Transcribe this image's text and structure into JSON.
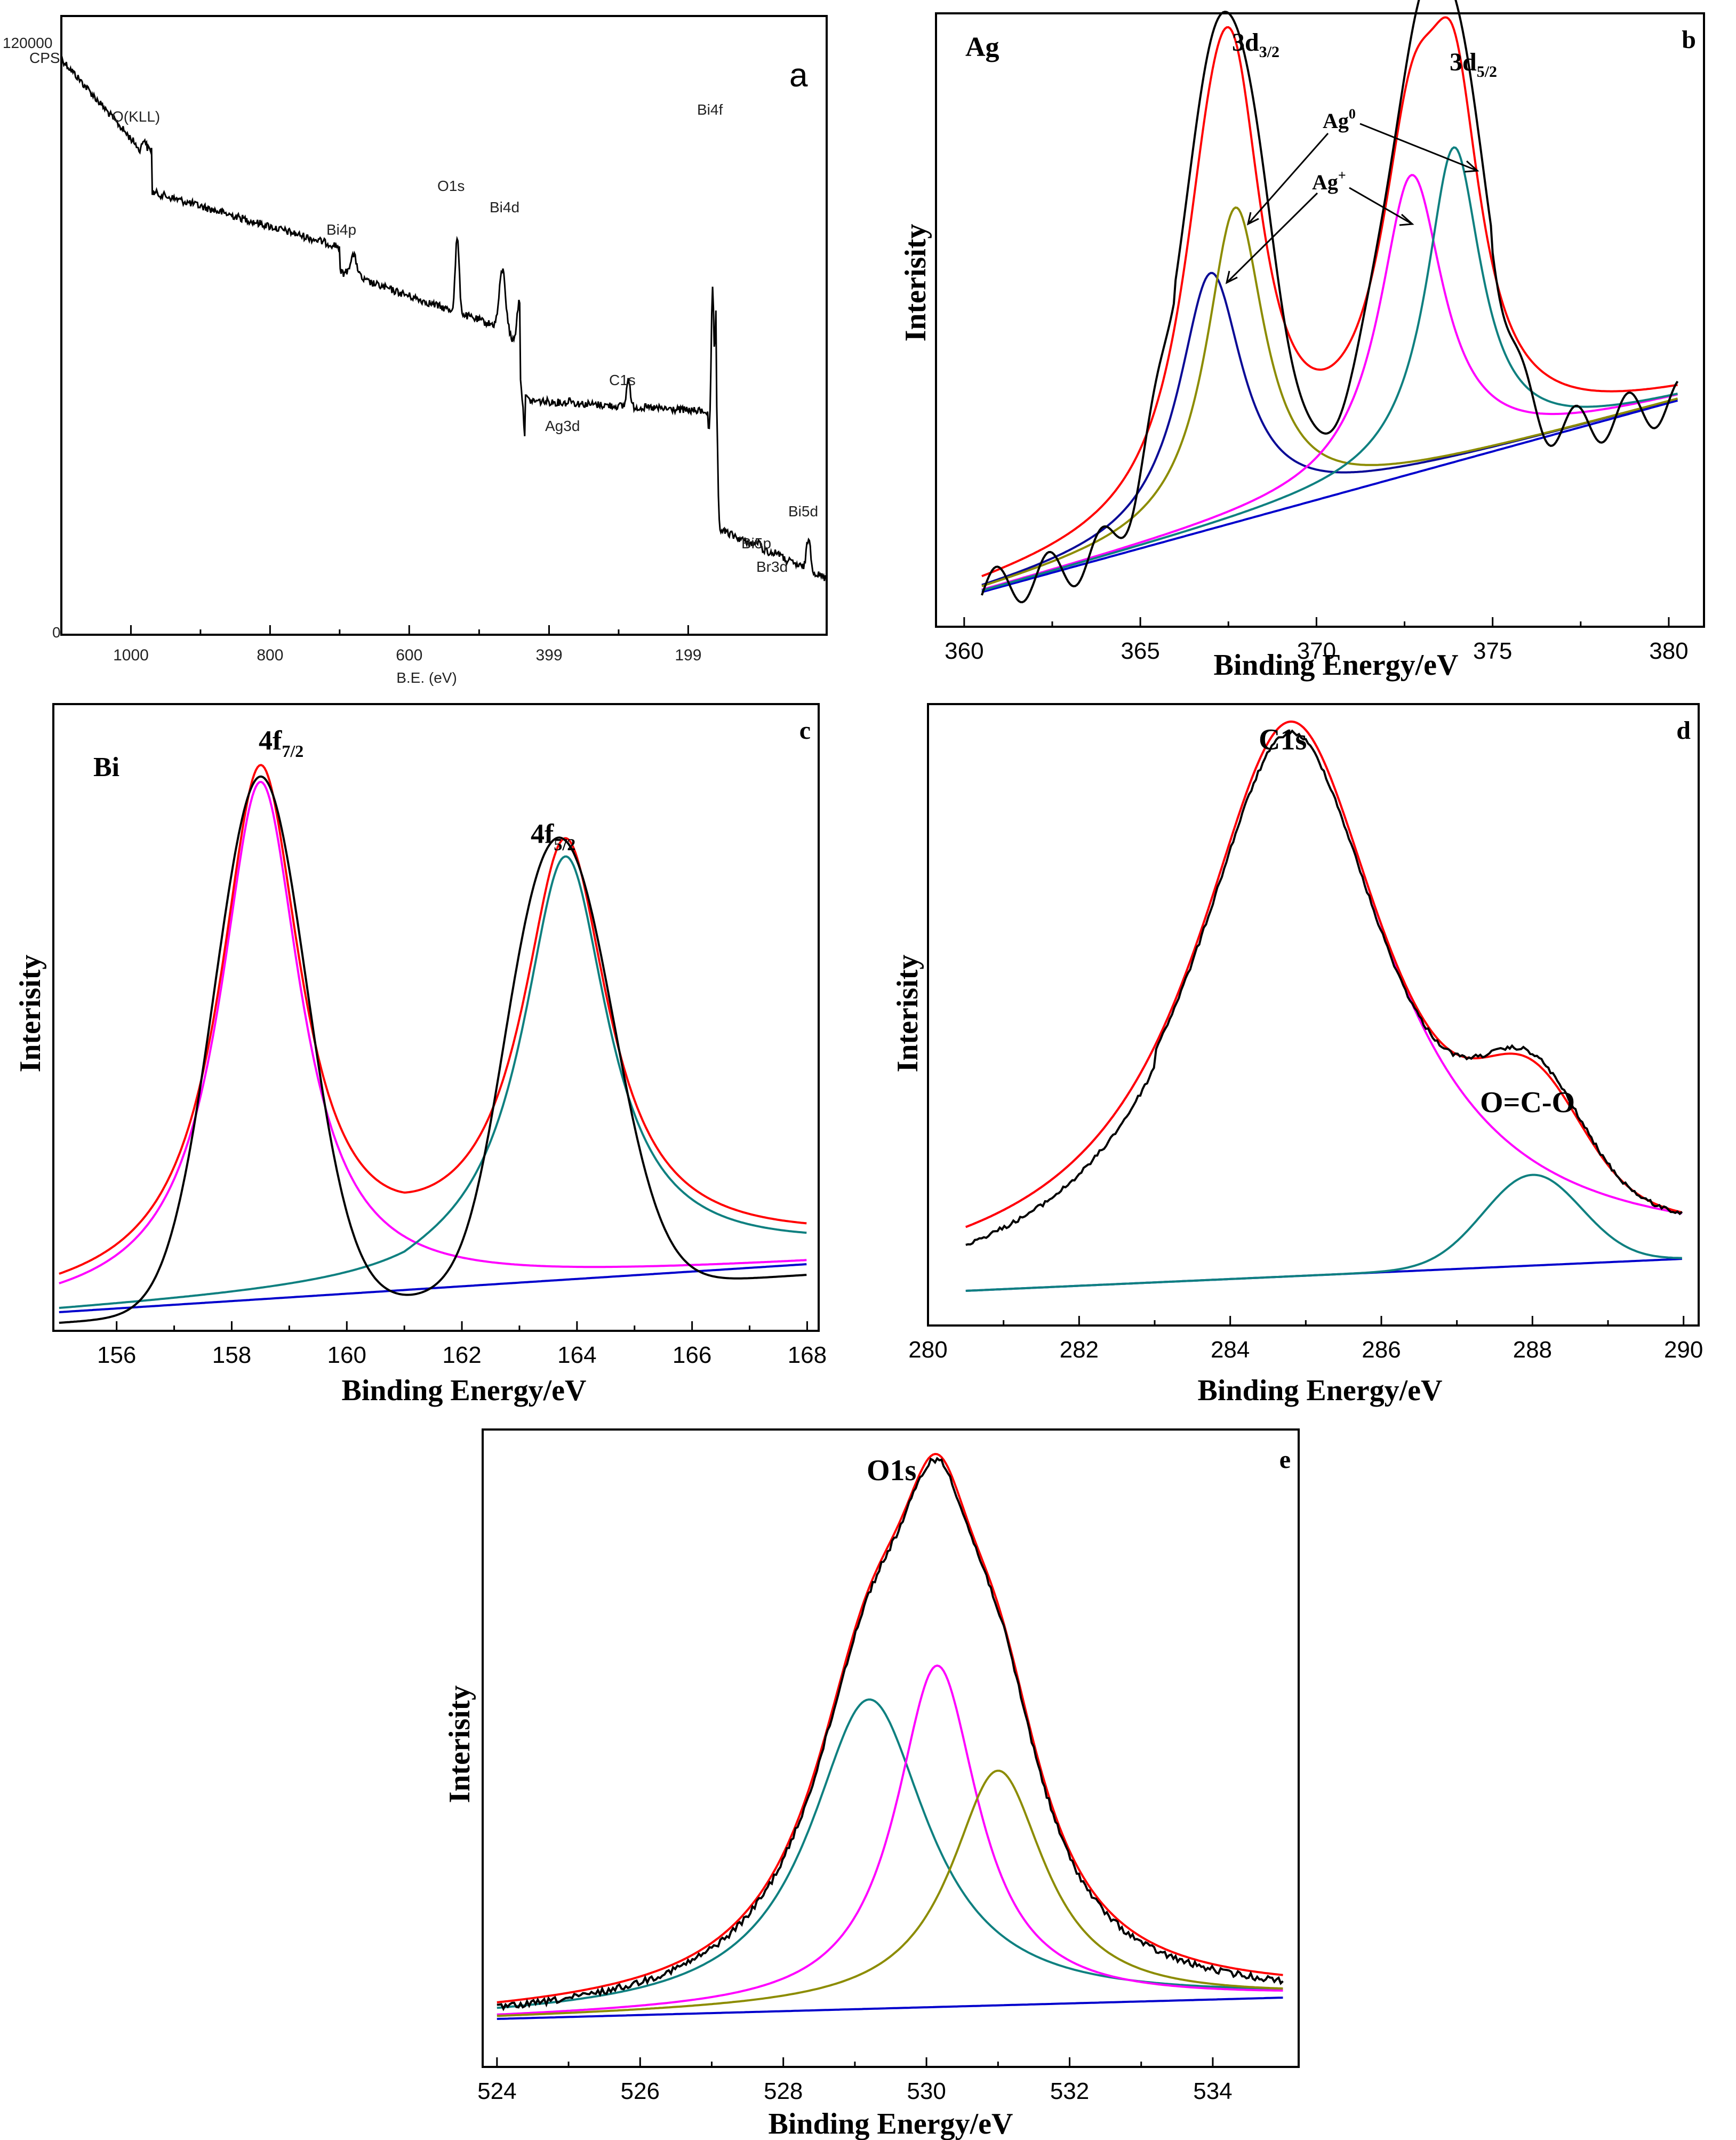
{
  "colors": {
    "measured": "#000000",
    "envelope": "#ff0000",
    "background": "#0000cc",
    "magenta": "#ff00ff",
    "teal": "#0f8080",
    "olive": "#8c8c00",
    "navy": "#0a0a96"
  },
  "chart_data": [
    {
      "id": "a",
      "type": "line",
      "panel_label": "a",
      "title": "",
      "xlabel": "B.E. (eV)",
      "ylabel": "",
      "y_unit_label": "CPS",
      "y_top_label": "120000",
      "y_bottom_label": "0",
      "xlim": [
        1100,
        0
      ],
      "ylim": [
        0,
        120000
      ],
      "x_ticks": [
        1000,
        800,
        600,
        399,
        199
      ],
      "annotations": [
        "O(KLL)",
        "O1s",
        "Bi4p",
        "Bi4d",
        "Ag3d",
        "C1s",
        "Bi4f",
        "Bi5p",
        "Br3d",
        "Bi5d"
      ]
    },
    {
      "id": "b",
      "type": "line",
      "panel_label": "b",
      "element_label": "Ag",
      "xlabel": "Binding Energy/eV",
      "ylabel": "Interisity",
      "xlim": [
        359.2,
        381
      ],
      "x_ticks": [
        360,
        365,
        370,
        375,
        380
      ],
      "peak_labels": {
        "p1": "3d",
        "p1_sub": "3/2",
        "p2": "3d",
        "p2_sub": "5/2"
      },
      "state_labels": {
        "a0": "Ag",
        "a0_sup": "0",
        "a1": "Ag",
        "a1_sup": "+"
      }
    },
    {
      "id": "c",
      "type": "line",
      "panel_label": "c",
      "element_label": "Bi",
      "xlabel": "Binding Energy/eV",
      "ylabel": "Interisity",
      "xlim": [
        154.9,
        168.2
      ],
      "x_ticks": [
        156,
        158,
        160,
        162,
        164,
        166,
        168
      ],
      "peak_labels": {
        "p1": "4f",
        "p1_sub": "7/2",
        "p2": "4f",
        "p2_sub": "5/2"
      }
    },
    {
      "id": "d",
      "type": "line",
      "panel_label": "d",
      "xlabel": "Binding Energy/eV",
      "ylabel": "Interisity",
      "xlim": [
        280,
        290.2
      ],
      "x_ticks": [
        280,
        282,
        284,
        286,
        288,
        290
      ],
      "peak_labels": {
        "p1": "C1s",
        "p2": "O=C-O"
      }
    },
    {
      "id": "e",
      "type": "line",
      "panel_label": "e",
      "xlabel": "Binding Energy/eV",
      "ylabel": "Interisity",
      "xlim": [
        523.8,
        535.2
      ],
      "x_ticks": [
        524,
        526,
        528,
        530,
        532,
        534
      ],
      "peak_labels": {
        "p1": "O1s"
      }
    }
  ]
}
